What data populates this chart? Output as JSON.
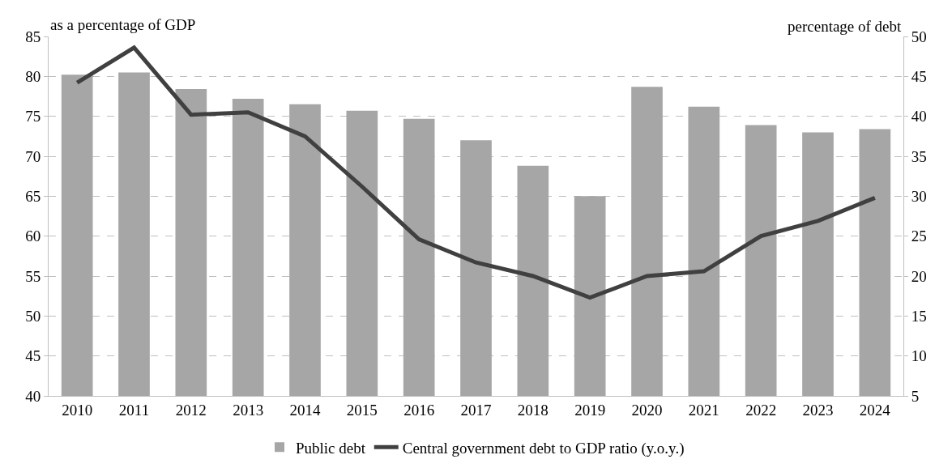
{
  "chart_data": {
    "type": "bar",
    "ylabel": "as a percentage of GDP",
    "y2label": "percentage of debt",
    "categories": [
      "2010",
      "2011",
      "2012",
      "2013",
      "2014",
      "2015",
      "2016",
      "2017",
      "2018",
      "2019",
      "2020",
      "2021",
      "2022",
      "2023",
      "2024"
    ],
    "series": [
      {
        "name": "Public debt",
        "color": "#a6a6a6",
        "values": [
          80.2,
          80.5,
          78.4,
          77.2,
          76.5,
          75.7,
          74.7,
          72.0,
          68.8,
          65.0,
          78.7,
          76.2,
          73.9,
          73.0,
          73.4
        ]
      },
      {
        "name": "Central government debt to GDP ratio (y.o.y.)",
        "color": "#404040",
        "type": "line",
        "axis": "y2",
        "values": [
          44.2,
          48.6,
          40.2,
          40.5,
          37.5,
          31.2,
          24.6,
          21.7,
          20.0,
          17.3,
          20.0,
          20.6,
          25.0,
          26.9,
          29.8
        ]
      }
    ],
    "ylim": [
      40,
      85
    ],
    "yticks": [
      40,
      45,
      50,
      55,
      60,
      65,
      70,
      75,
      80,
      85
    ],
    "y2lim": [
      5,
      50
    ],
    "y2ticks": [
      5,
      10,
      15,
      20,
      25,
      30,
      35,
      40,
      45,
      50
    ],
    "grid": "y",
    "legend": "bottom",
    "marker": "none",
    "line_style": "solid"
  }
}
